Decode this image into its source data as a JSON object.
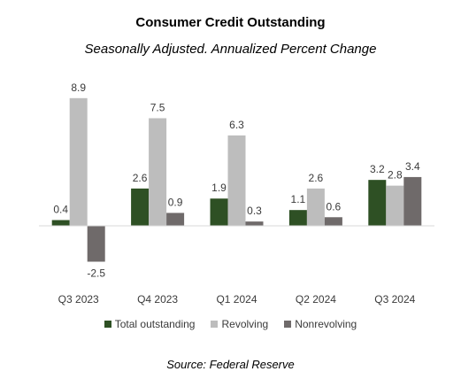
{
  "chart_data": {
    "type": "bar",
    "title": "Consumer Credit Outstanding",
    "subtitle": "Seasonally Adjusted. Annualized Percent Change",
    "categories": [
      "Q3 2023",
      "Q4 2023",
      "Q1 2024",
      "Q2 2024",
      "Q3 2024"
    ],
    "series": [
      {
        "name": "Total outstanding",
        "values": [
          0.4,
          2.6,
          1.9,
          1.1,
          3.2
        ],
        "labels": [
          "0.4",
          "2.6",
          "1.9",
          "1.1",
          "3.2"
        ],
        "color": "#2e5024"
      },
      {
        "name": "Revolving",
        "values": [
          8.9,
          7.5,
          6.3,
          2.6,
          2.8
        ],
        "labels": [
          "8.9",
          "7.5",
          "6.3",
          "2.6",
          "2.8"
        ],
        "color": "#bdbdbd"
      },
      {
        "name": "Nonrevolving",
        "values": [
          -2.5,
          0.9,
          0.3,
          0.6,
          3.4
        ],
        "labels": [
          "-2.5",
          "0.9",
          "0.3",
          "0.6",
          "3.4"
        ],
        "color": "#6f6a6a"
      }
    ],
    "ylim": [
      -3.2,
      9.0
    ],
    "grid": false,
    "legend": "bottom",
    "source": "Source: Federal Reserve"
  }
}
